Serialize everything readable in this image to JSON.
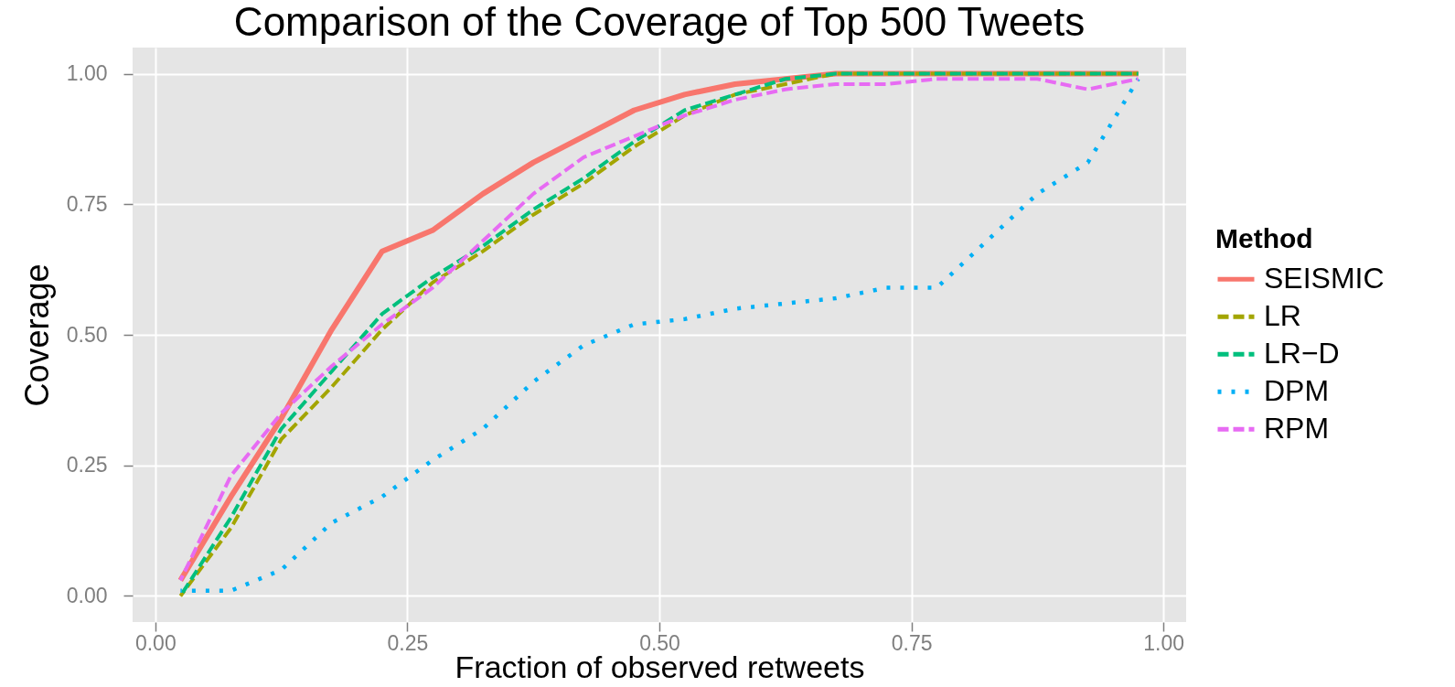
{
  "chart_data": {
    "type": "line",
    "title": "Comparison of the Coverage of Top 500 Tweets",
    "xlabel": "Fraction of observed retweets",
    "ylabel": "Coverage",
    "legend_title": "Method",
    "x": [
      0.025,
      0.075,
      0.125,
      0.175,
      0.225,
      0.275,
      0.325,
      0.375,
      0.425,
      0.475,
      0.525,
      0.575,
      0.625,
      0.675,
      0.725,
      0.775,
      0.825,
      0.875,
      0.925,
      0.975
    ],
    "series": [
      {
        "name": "SEISMIC",
        "color": "#f8766d",
        "line_style": "solid",
        "values": [
          0.03,
          0.19,
          0.34,
          0.51,
          0.66,
          0.7,
          0.77,
          0.83,
          0.88,
          0.93,
          0.96,
          0.98,
          0.99,
          1,
          1,
          1,
          1,
          1,
          1,
          1
        ]
      },
      {
        "name": "LR",
        "color": "#a3a500",
        "line_style": "dashed",
        "values": [
          0,
          0.13,
          0.3,
          0.4,
          0.51,
          0.6,
          0.66,
          0.73,
          0.79,
          0.86,
          0.92,
          0.96,
          0.98,
          1,
          1,
          1,
          1,
          1,
          1,
          1
        ]
      },
      {
        "name": "LR−D",
        "color": "#00bf7d",
        "line_style": "dashed",
        "values": [
          0,
          0.15,
          0.32,
          0.43,
          0.54,
          0.61,
          0.67,
          0.74,
          0.8,
          0.87,
          0.93,
          0.96,
          0.99,
          1,
          1,
          1,
          1,
          1,
          1,
          1
        ]
      },
      {
        "name": "DPM",
        "color": "#00b0f6",
        "line_style": "dotted",
        "values": [
          0.01,
          0.01,
          0.05,
          0.14,
          0.19,
          0.26,
          0.32,
          0.41,
          0.48,
          0.52,
          0.53,
          0.55,
          0.56,
          0.57,
          0.59,
          0.59,
          0.68,
          0.77,
          0.83,
          0.99
        ]
      },
      {
        "name": "RPM",
        "color": "#e76bf3",
        "line_style": "dashed",
        "values": [
          0.03,
          0.23,
          0.35,
          0.44,
          0.52,
          0.59,
          0.68,
          0.77,
          0.84,
          0.88,
          0.92,
          0.95,
          0.97,
          0.98,
          0.98,
          0.99,
          0.99,
          0.99,
          0.97,
          0.99
        ]
      }
    ],
    "xlim": [
      -0.0225,
      1.0225
    ],
    "ylim": [
      -0.05,
      1.05
    ],
    "xticks": [
      {
        "value": 0,
        "label": "0.00"
      },
      {
        "value": 0.25,
        "label": "0.25"
      },
      {
        "value": 0.5,
        "label": "0.50"
      },
      {
        "value": 0.75,
        "label": "0.75"
      },
      {
        "value": 1,
        "label": "1.00"
      }
    ],
    "yticks": [
      {
        "value": 0,
        "label": "0.00"
      },
      {
        "value": 0.25,
        "label": "0.25"
      },
      {
        "value": 0.5,
        "label": "0.50"
      },
      {
        "value": 0.75,
        "label": "0.75"
      },
      {
        "value": 1,
        "label": "1.00"
      }
    ],
    "grid": true,
    "legend": "right"
  }
}
